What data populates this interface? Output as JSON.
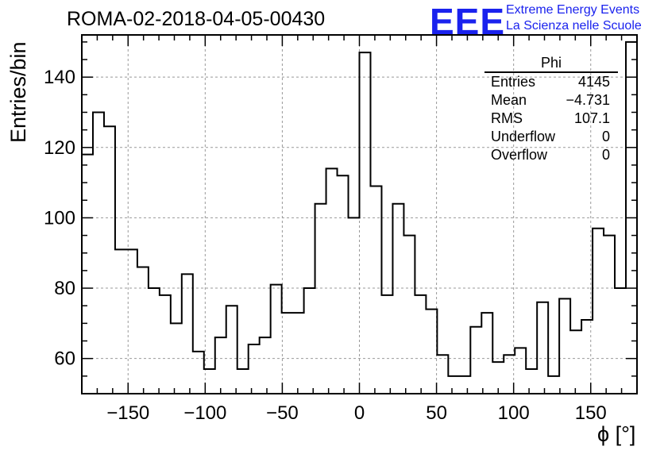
{
  "header": {
    "run_title": "ROMA-02-2018-04-05-00430",
    "logo_mark": "EEE",
    "logo_line1": "Extreme Energy Events",
    "logo_line2": "La Scienza nelle Scuole"
  },
  "stats_box": {
    "name": "Phi",
    "rows": [
      {
        "label": "Entries",
        "value": "4145"
      },
      {
        "label": "Mean",
        "value": "−4.731"
      },
      {
        "label": "RMS",
        "value": "107.1"
      },
      {
        "label": "Underflow",
        "value": "0"
      },
      {
        "label": "Overflow",
        "value": "0"
      }
    ]
  },
  "chart_data": {
    "type": "bar",
    "style": "step-histogram",
    "title": "ROMA-02-2018-04-05-00430",
    "xlabel": "ϕ [°]",
    "ylabel": "Entries/bin",
    "xlim": [
      -180,
      180
    ],
    "ylim": [
      50,
      152
    ],
    "bin_width": 7.2,
    "grid": true,
    "x_ticks": [
      -150,
      -100,
      -50,
      0,
      50,
      100,
      150
    ],
    "x_tick_labels": [
      "−150",
      "−100",
      "−50",
      "0",
      "50",
      "100",
      "150"
    ],
    "y_ticks": [
      60,
      80,
      100,
      120,
      140
    ],
    "y_tick_labels": [
      "60",
      "80",
      "100",
      "120",
      "140"
    ],
    "values": [
      118,
      130,
      126,
      91,
      91,
      86,
      80,
      78,
      70,
      84,
      62,
      57,
      66,
      75,
      57,
      64,
      66,
      81,
      73,
      73,
      80,
      104,
      114,
      112,
      100,
      147,
      109,
      78,
      104,
      95,
      78,
      74,
      61,
      55,
      55,
      69,
      73,
      59,
      61,
      63,
      57,
      76,
      55,
      77,
      68,
      71,
      97,
      95,
      80,
      150
    ],
    "colors": {
      "line": "#000000",
      "grid": "#999999",
      "logo": "#1a22ee"
    }
  }
}
